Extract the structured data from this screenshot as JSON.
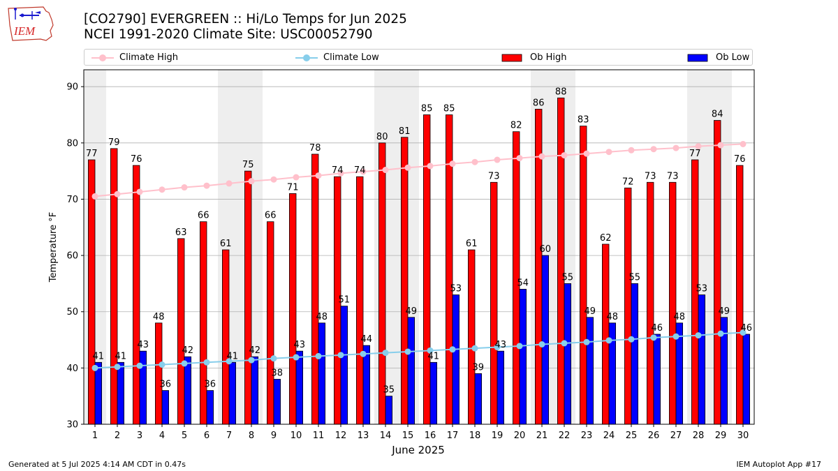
{
  "title_line1": "[CO2790] EVERGREEN :: Hi/Lo Temps for Jun 2025",
  "title_line2": "NCEI 1991-2020 Climate Site: USC00052790",
  "logo_text": "IEM",
  "footer_left": "Generated at 5 Jul 2025 4:14 AM CDT in 0.47s",
  "footer_right": "IEM Autoplot App #17",
  "colors": {
    "ob_high": "#ff0000",
    "ob_low": "#0000ff",
    "climate_high": "#ffc0cb",
    "climate_low": "#87ceeb",
    "weekend_shade": "#eeeeee",
    "grid": "#b0b0b0"
  },
  "legend": [
    {
      "label": "Climate High",
      "kind": "line",
      "color": "#ffc0cb"
    },
    {
      "label": "Climate Low",
      "kind": "line",
      "color": "#87ceeb"
    },
    {
      "label": "Ob High",
      "kind": "bar",
      "color": "#ff0000"
    },
    {
      "label": "Ob Low",
      "kind": "bar",
      "color": "#0000ff"
    }
  ],
  "chart_data": {
    "type": "bar",
    "title": "[CO2790] EVERGREEN :: Hi/Lo Temps for Jun 2025",
    "subtitle": "NCEI 1991-2020 Climate Site: USC00052790",
    "xlabel": "June 2025",
    "ylabel": "Temperature °F",
    "ylim": [
      30,
      93
    ],
    "yticks": [
      30,
      40,
      50,
      60,
      70,
      80,
      90
    ],
    "grid": true,
    "legend_position": "top",
    "categories": [
      "1",
      "2",
      "3",
      "4",
      "5",
      "6",
      "7",
      "8",
      "9",
      "10",
      "11",
      "12",
      "13",
      "14",
      "15",
      "16",
      "17",
      "18",
      "19",
      "20",
      "21",
      "22",
      "23",
      "24",
      "25",
      "26",
      "27",
      "28",
      "29",
      "30"
    ],
    "weekend_days": [
      1,
      7,
      8,
      14,
      15,
      21,
      22,
      28,
      29
    ],
    "series": [
      {
        "name": "Ob High",
        "kind": "bar",
        "color": "#ff0000",
        "values": [
          77,
          79,
          76,
          48,
          63,
          66,
          61,
          75,
          66,
          71,
          78,
          74,
          74,
          80,
          81,
          85,
          85,
          61,
          73,
          82,
          86,
          88,
          83,
          62,
          72,
          73,
          73,
          77,
          84,
          76
        ]
      },
      {
        "name": "Ob Low",
        "kind": "bar",
        "color": "#0000ff",
        "values": [
          41,
          41,
          43,
          36,
          42,
          36,
          41,
          42,
          38,
          43,
          48,
          51,
          44,
          35,
          49,
          41,
          53,
          39,
          43,
          54,
          60,
          55,
          49,
          48,
          55,
          46,
          48,
          53,
          49,
          46
        ]
      },
      {
        "name": "Climate High",
        "kind": "line",
        "color": "#ffc0cb",
        "values": [
          70.5,
          70.9,
          71.3,
          71.7,
          72.1,
          72.4,
          72.8,
          73.2,
          73.5,
          73.9,
          74.2,
          74.6,
          74.9,
          75.2,
          75.6,
          75.9,
          76.3,
          76.6,
          77.0,
          77.3,
          77.6,
          77.8,
          78.1,
          78.4,
          78.7,
          78.9,
          79.1,
          79.4,
          79.6,
          79.8
        ]
      },
      {
        "name": "Climate Low",
        "kind": "line",
        "color": "#87ceeb",
        "values": [
          40.0,
          40.2,
          40.4,
          40.6,
          40.8,
          41.0,
          41.2,
          41.4,
          41.7,
          41.9,
          42.1,
          42.3,
          42.5,
          42.7,
          42.9,
          43.1,
          43.3,
          43.5,
          43.7,
          43.9,
          44.2,
          44.4,
          44.6,
          44.9,
          45.1,
          45.4,
          45.6,
          45.8,
          46.1,
          46.3
        ]
      }
    ]
  }
}
